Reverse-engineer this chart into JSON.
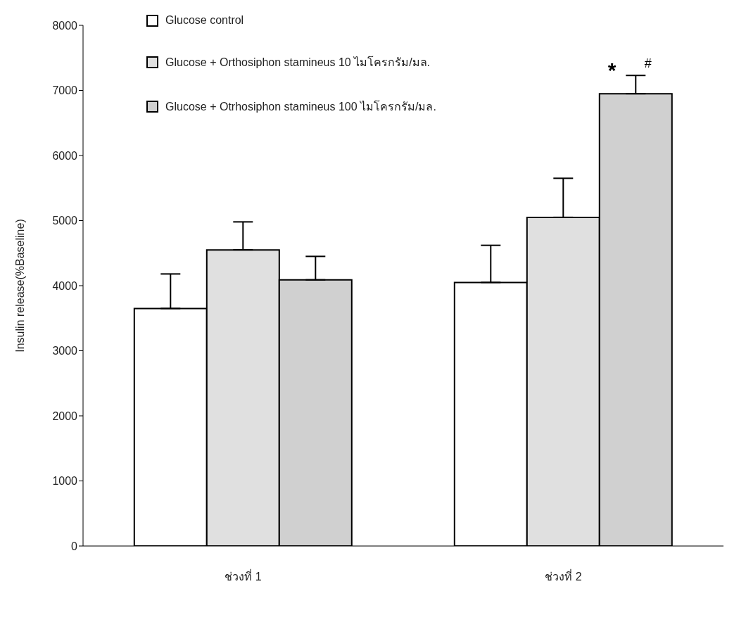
{
  "chart_data": {
    "type": "bar",
    "ylabel": "Insulin release(%Baseline)",
    "categories": [
      "ช่วงที่ 1",
      "ช่วงที่ 2"
    ],
    "series": [
      {
        "name": "Glucose control",
        "color": "#ffffff",
        "values": [
          3650,
          4050
        ],
        "errors": [
          530,
          570
        ]
      },
      {
        "name": "Glucose + Orthosiphon stamineus 10 ไมโครกรัม/มล.",
        "color": "#e0e0e0",
        "values": [
          4550,
          5050
        ],
        "errors": [
          430,
          600
        ]
      },
      {
        "name": "Glucose + Otrhosiphon stamineus 100 ไมโครกรัม/มล.",
        "color": "#d0d0d0",
        "values": [
          4090,
          6950
        ],
        "errors": [
          360,
          280
        ]
      }
    ],
    "ylim": [
      0,
      8000
    ],
    "yticks": [
      0,
      1000,
      2000,
      3000,
      4000,
      5000,
      6000,
      7000,
      8000
    ],
    "grid": false,
    "legend": "top left",
    "annotations": [
      "*",
      "#"
    ]
  }
}
